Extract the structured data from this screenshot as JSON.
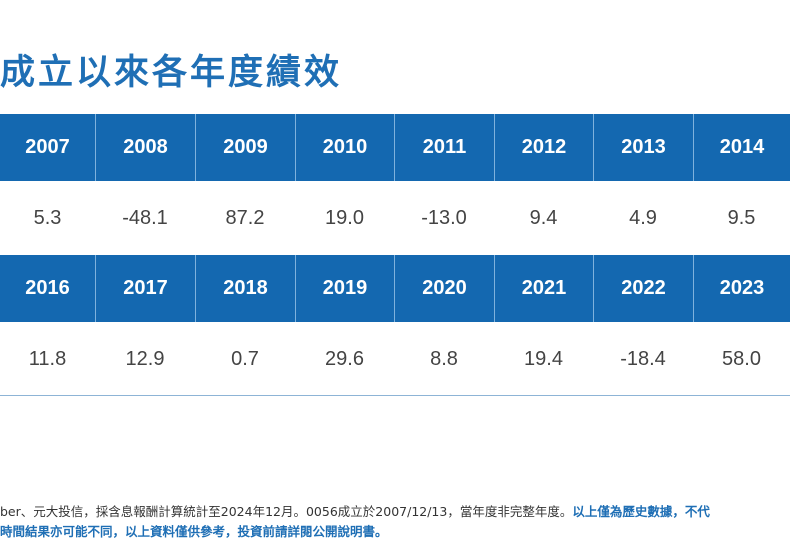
{
  "title": "成立以來各年度績效",
  "table1": {
    "years": [
      "2007",
      "2008",
      "2009",
      "2010",
      "2011",
      "2012",
      "2013",
      "2014"
    ],
    "values": [
      "5.3",
      "-48.1",
      "87.2",
      "19.0",
      "-13.0",
      "9.4",
      "4.9",
      "9.5"
    ]
  },
  "table2": {
    "years": [
      "2016",
      "2017",
      "2018",
      "2019",
      "2020",
      "2021",
      "2022",
      "2023"
    ],
    "values": [
      "11.8",
      "12.9",
      "0.7",
      "29.6",
      "8.8",
      "19.4",
      "-18.4",
      "58.0"
    ]
  },
  "footnote": {
    "line1_plain": "ber、元大投信，採含息報酬計算統計至2024年12月。0056成立於2007/12/13，當年度非完整年度。",
    "line1_highlight": "以上僅為歷史數據，不代",
    "line2": "時間結果亦可能不同，以上資料僅供參考，投資前請詳閱公開說明書。"
  },
  "colors": {
    "header_bg": "#1468b0",
    "title": "#1f6fb5",
    "value_text": "#444444"
  }
}
